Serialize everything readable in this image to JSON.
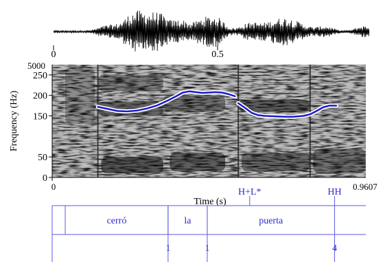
{
  "chart_data": {
    "type": "line",
    "waveform": {
      "x_ticks": [
        {
          "value": 0,
          "label": "0"
        },
        {
          "value": 0.5,
          "label": "0.5"
        }
      ]
    },
    "spectrogram": {
      "ylabel": "Frequency (Hz)",
      "xlabel": "Time (s)",
      "spec_top_label": "5000",
      "x_start_label": "0",
      "x_end_label": "0.9607",
      "xlim": [
        0,
        0.9607
      ],
      "ylim": [
        0,
        275
      ],
      "y_ticks": [
        {
          "value": 0,
          "label": "0"
        },
        {
          "value": 50,
          "label": "50"
        },
        {
          "value": 150,
          "label": "150"
        },
        {
          "value": 200,
          "label": "200"
        },
        {
          "value": 250,
          "label": "250"
        }
      ]
    },
    "series": [
      {
        "color": "#1a1acc",
        "segments": [
          {
            "x": [
              0.14,
              0.17,
              0.2,
              0.23,
              0.26,
              0.29,
              0.32,
              0.35,
              0.38,
              0.4,
              0.42,
              0.44,
              0.46,
              0.48,
              0.5,
              0.52,
              0.54,
              0.56
            ],
            "y": [
              172,
              167,
              162,
              161,
              163,
              168,
              175,
              186,
              198,
              207,
              210,
              208,
              206,
              207,
              208,
              207,
              203,
              198
            ]
          },
          {
            "x": [
              0.57,
              0.59,
              0.61,
              0.63,
              0.65,
              0.68,
              0.71,
              0.74,
              0.77,
              0.79,
              0.81,
              0.83,
              0.85,
              0.87
            ],
            "y": [
              181,
              170,
              158,
              152,
              150,
              149,
              148,
              148,
              150,
              154,
              162,
              171,
              175,
              175
            ]
          }
        ]
      }
    ],
    "tones": [
      {
        "x": 0.605,
        "label": "H+L*"
      },
      {
        "x": 0.865,
        "label": "HH"
      }
    ],
    "words": [
      {
        "start": 0.04,
        "end": 0.355,
        "label": "cerró"
      },
      {
        "start": 0.355,
        "end": 0.475,
        "label": "la"
      },
      {
        "start": 0.475,
        "end": 0.865,
        "label": "puerta"
      }
    ],
    "breaks": [
      {
        "x": 0.355,
        "label": "1"
      },
      {
        "x": 0.475,
        "label": "1"
      },
      {
        "x": 0.865,
        "label": "4"
      }
    ]
  }
}
